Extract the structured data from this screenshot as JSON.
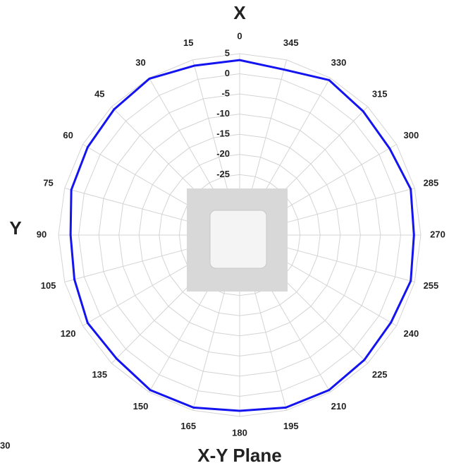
{
  "chart_data": {
    "type": "polar",
    "title": "X-Y Plane",
    "top_axis_label": "X",
    "left_axis_label": "Y",
    "corner_label": "30",
    "theta": [
      0,
      15,
      30,
      45,
      60,
      75,
      90,
      105,
      120,
      135,
      150,
      165,
      180,
      195,
      210,
      225,
      240,
      255,
      270,
      285,
      300,
      315,
      330,
      345
    ],
    "series": [
      {
        "color": "#1414f0",
        "values": [
          3.4,
          3.5,
          4.8,
          4.1,
          3.6,
          3.3,
          2.0,
          2.5,
          3.6,
          3.3,
          4.4,
          4.3,
          3.6,
          4.3,
          4.4,
          3.8,
          3.4,
          4.0,
          3.3,
          4.0,
          3.0,
          3.4,
          4.4,
          2.5
        ]
      }
    ],
    "rlim": [
      -40,
      5
    ],
    "rticks": [
      5,
      0,
      -5,
      -10,
      -15,
      -20,
      -25
    ],
    "grid": true
  }
}
